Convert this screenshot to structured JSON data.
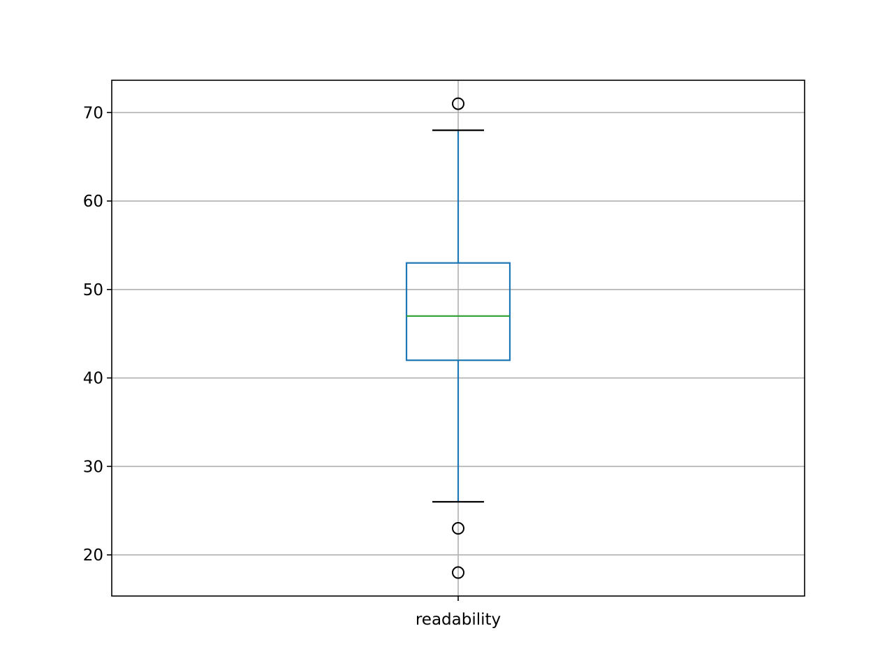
{
  "chart_data": {
    "type": "box",
    "categories": [
      "readability"
    ],
    "boxes": [
      {
        "category": "readability",
        "whisker_low": 26,
        "q1": 42,
        "median": 47,
        "q3": 53,
        "whisker_high": 68,
        "outliers": [
          71,
          23,
          18
        ]
      }
    ],
    "y_ticks": [
      20,
      30,
      40,
      50,
      60,
      70
    ],
    "ylim": [
      15.35,
      73.65
    ],
    "title": "",
    "xlabel": "",
    "ylabel": "",
    "grid": true,
    "colors": {
      "box": "#1f77b4",
      "median": "#2ca02c",
      "whisker_cap": "#000000",
      "outlier": "#000000",
      "grid": "#b0b0b0",
      "axes": "#000000"
    }
  }
}
